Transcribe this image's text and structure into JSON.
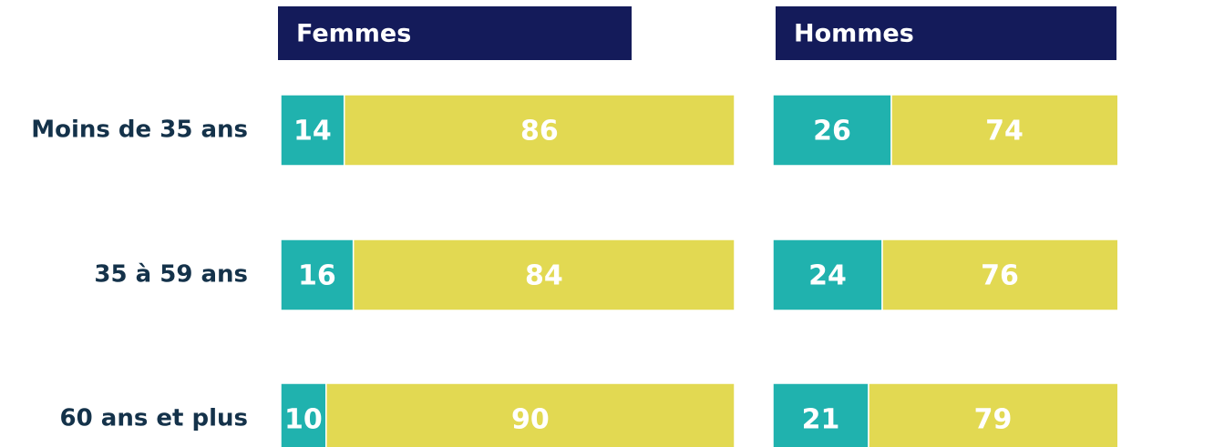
{
  "chart_data": {
    "type": "bar",
    "stacked": true,
    "categories": [
      "Moins de 35 ans",
      "35 à 59 ans",
      "60 ans et plus"
    ],
    "xlim": [
      0,
      100
    ],
    "panels": [
      {
        "title": "Femmes",
        "series": [
          {
            "color": "#20b2ae",
            "values": [
              14,
              16,
              10
            ]
          },
          {
            "color": "#e2d952",
            "values": [
              86,
              84,
              90
            ]
          }
        ]
      },
      {
        "title": "Hommes",
        "series": [
          {
            "color": "#20b2ae",
            "values": [
              26,
              24,
              21
            ]
          },
          {
            "color": "#e2d952",
            "values": [
              74,
              76,
              79
            ]
          }
        ]
      }
    ]
  }
}
